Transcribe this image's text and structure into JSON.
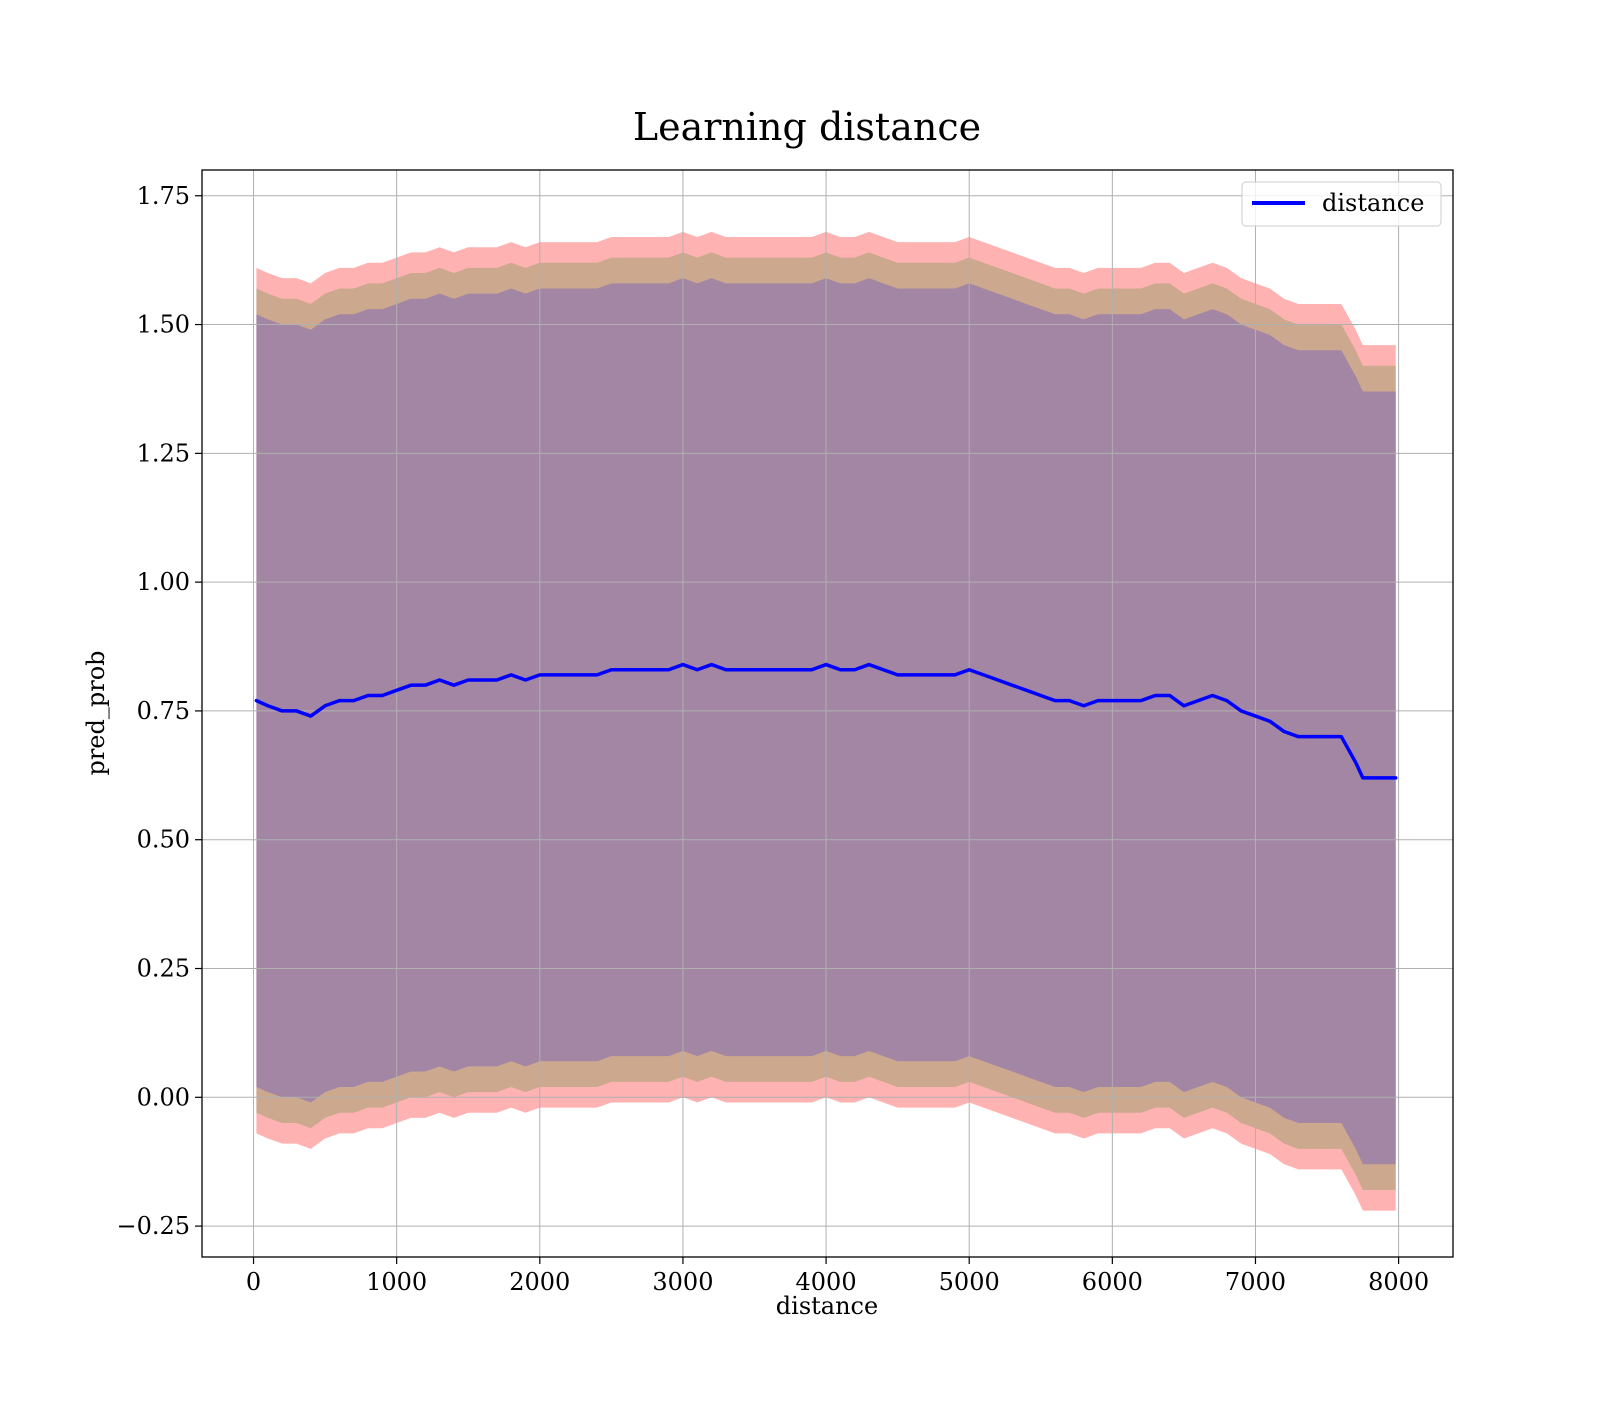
{
  "chart_data": {
    "type": "line",
    "title": "Learning distance",
    "xlabel": "distance",
    "ylabel": "pred_prob",
    "xlim": [
      -360,
      8380
    ],
    "ylim": [
      -0.31,
      1.8
    ],
    "xticks": [
      0,
      1000,
      2000,
      3000,
      4000,
      5000,
      6000,
      7000,
      8000
    ],
    "yticks": [
      -0.25,
      0.0,
      0.25,
      0.5,
      0.75,
      1.0,
      1.25,
      1.5,
      1.75
    ],
    "xtick_labels": [
      "0",
      "1000",
      "2000",
      "3000",
      "4000",
      "5000",
      "6000",
      "7000",
      "8000"
    ],
    "ytick_labels": [
      "−0.25",
      "0.00",
      "0.25",
      "0.50",
      "0.75",
      "1.00",
      "1.25",
      "1.50",
      "1.75"
    ],
    "grid": true,
    "legend": {
      "position": "top-right",
      "entries": [
        "distance"
      ]
    },
    "series": [
      {
        "name": "distance",
        "color": "#0000ff",
        "x": [
          20,
          100,
          200,
          300,
          400,
          500,
          600,
          700,
          800,
          900,
          1000,
          1100,
          1200,
          1300,
          1400,
          1500,
          1600,
          1700,
          1800,
          1900,
          2000,
          2100,
          2200,
          2300,
          2400,
          2500,
          2600,
          2700,
          2800,
          2900,
          3000,
          3100,
          3200,
          3300,
          3400,
          3500,
          3600,
          3700,
          3800,
          3900,
          4000,
          4100,
          4200,
          4300,
          4400,
          4500,
          4600,
          4700,
          4800,
          4900,
          5000,
          5100,
          5200,
          5300,
          5400,
          5500,
          5600,
          5700,
          5800,
          5900,
          6000,
          6100,
          6200,
          6300,
          6400,
          6500,
          6600,
          6700,
          6800,
          6900,
          7000,
          7100,
          7200,
          7300,
          7400,
          7500,
          7600,
          7700,
          7750,
          7980
        ],
        "values": [
          0.77,
          0.76,
          0.75,
          0.75,
          0.74,
          0.76,
          0.77,
          0.77,
          0.78,
          0.78,
          0.79,
          0.8,
          0.8,
          0.81,
          0.8,
          0.81,
          0.81,
          0.81,
          0.82,
          0.81,
          0.82,
          0.82,
          0.82,
          0.82,
          0.82,
          0.83,
          0.83,
          0.83,
          0.83,
          0.83,
          0.84,
          0.83,
          0.84,
          0.83,
          0.83,
          0.83,
          0.83,
          0.83,
          0.83,
          0.83,
          0.84,
          0.83,
          0.83,
          0.84,
          0.83,
          0.82,
          0.82,
          0.82,
          0.82,
          0.82,
          0.83,
          0.82,
          0.81,
          0.8,
          0.79,
          0.78,
          0.77,
          0.77,
          0.76,
          0.77,
          0.77,
          0.77,
          0.77,
          0.78,
          0.78,
          0.76,
          0.77,
          0.78,
          0.77,
          0.75,
          0.74,
          0.73,
          0.71,
          0.7,
          0.7,
          0.7,
          0.7,
          0.65,
          0.62,
          0.62
        ]
      }
    ],
    "bands": [
      {
        "color": "#ff0000",
        "opacity": 0.3,
        "half_width": 0.84
      },
      {
        "color": "#008000",
        "opacity": 0.2,
        "half_width": 0.8
      },
      {
        "color": "#0000ff",
        "opacity": 0.2,
        "half_width": 0.75
      }
    ]
  }
}
